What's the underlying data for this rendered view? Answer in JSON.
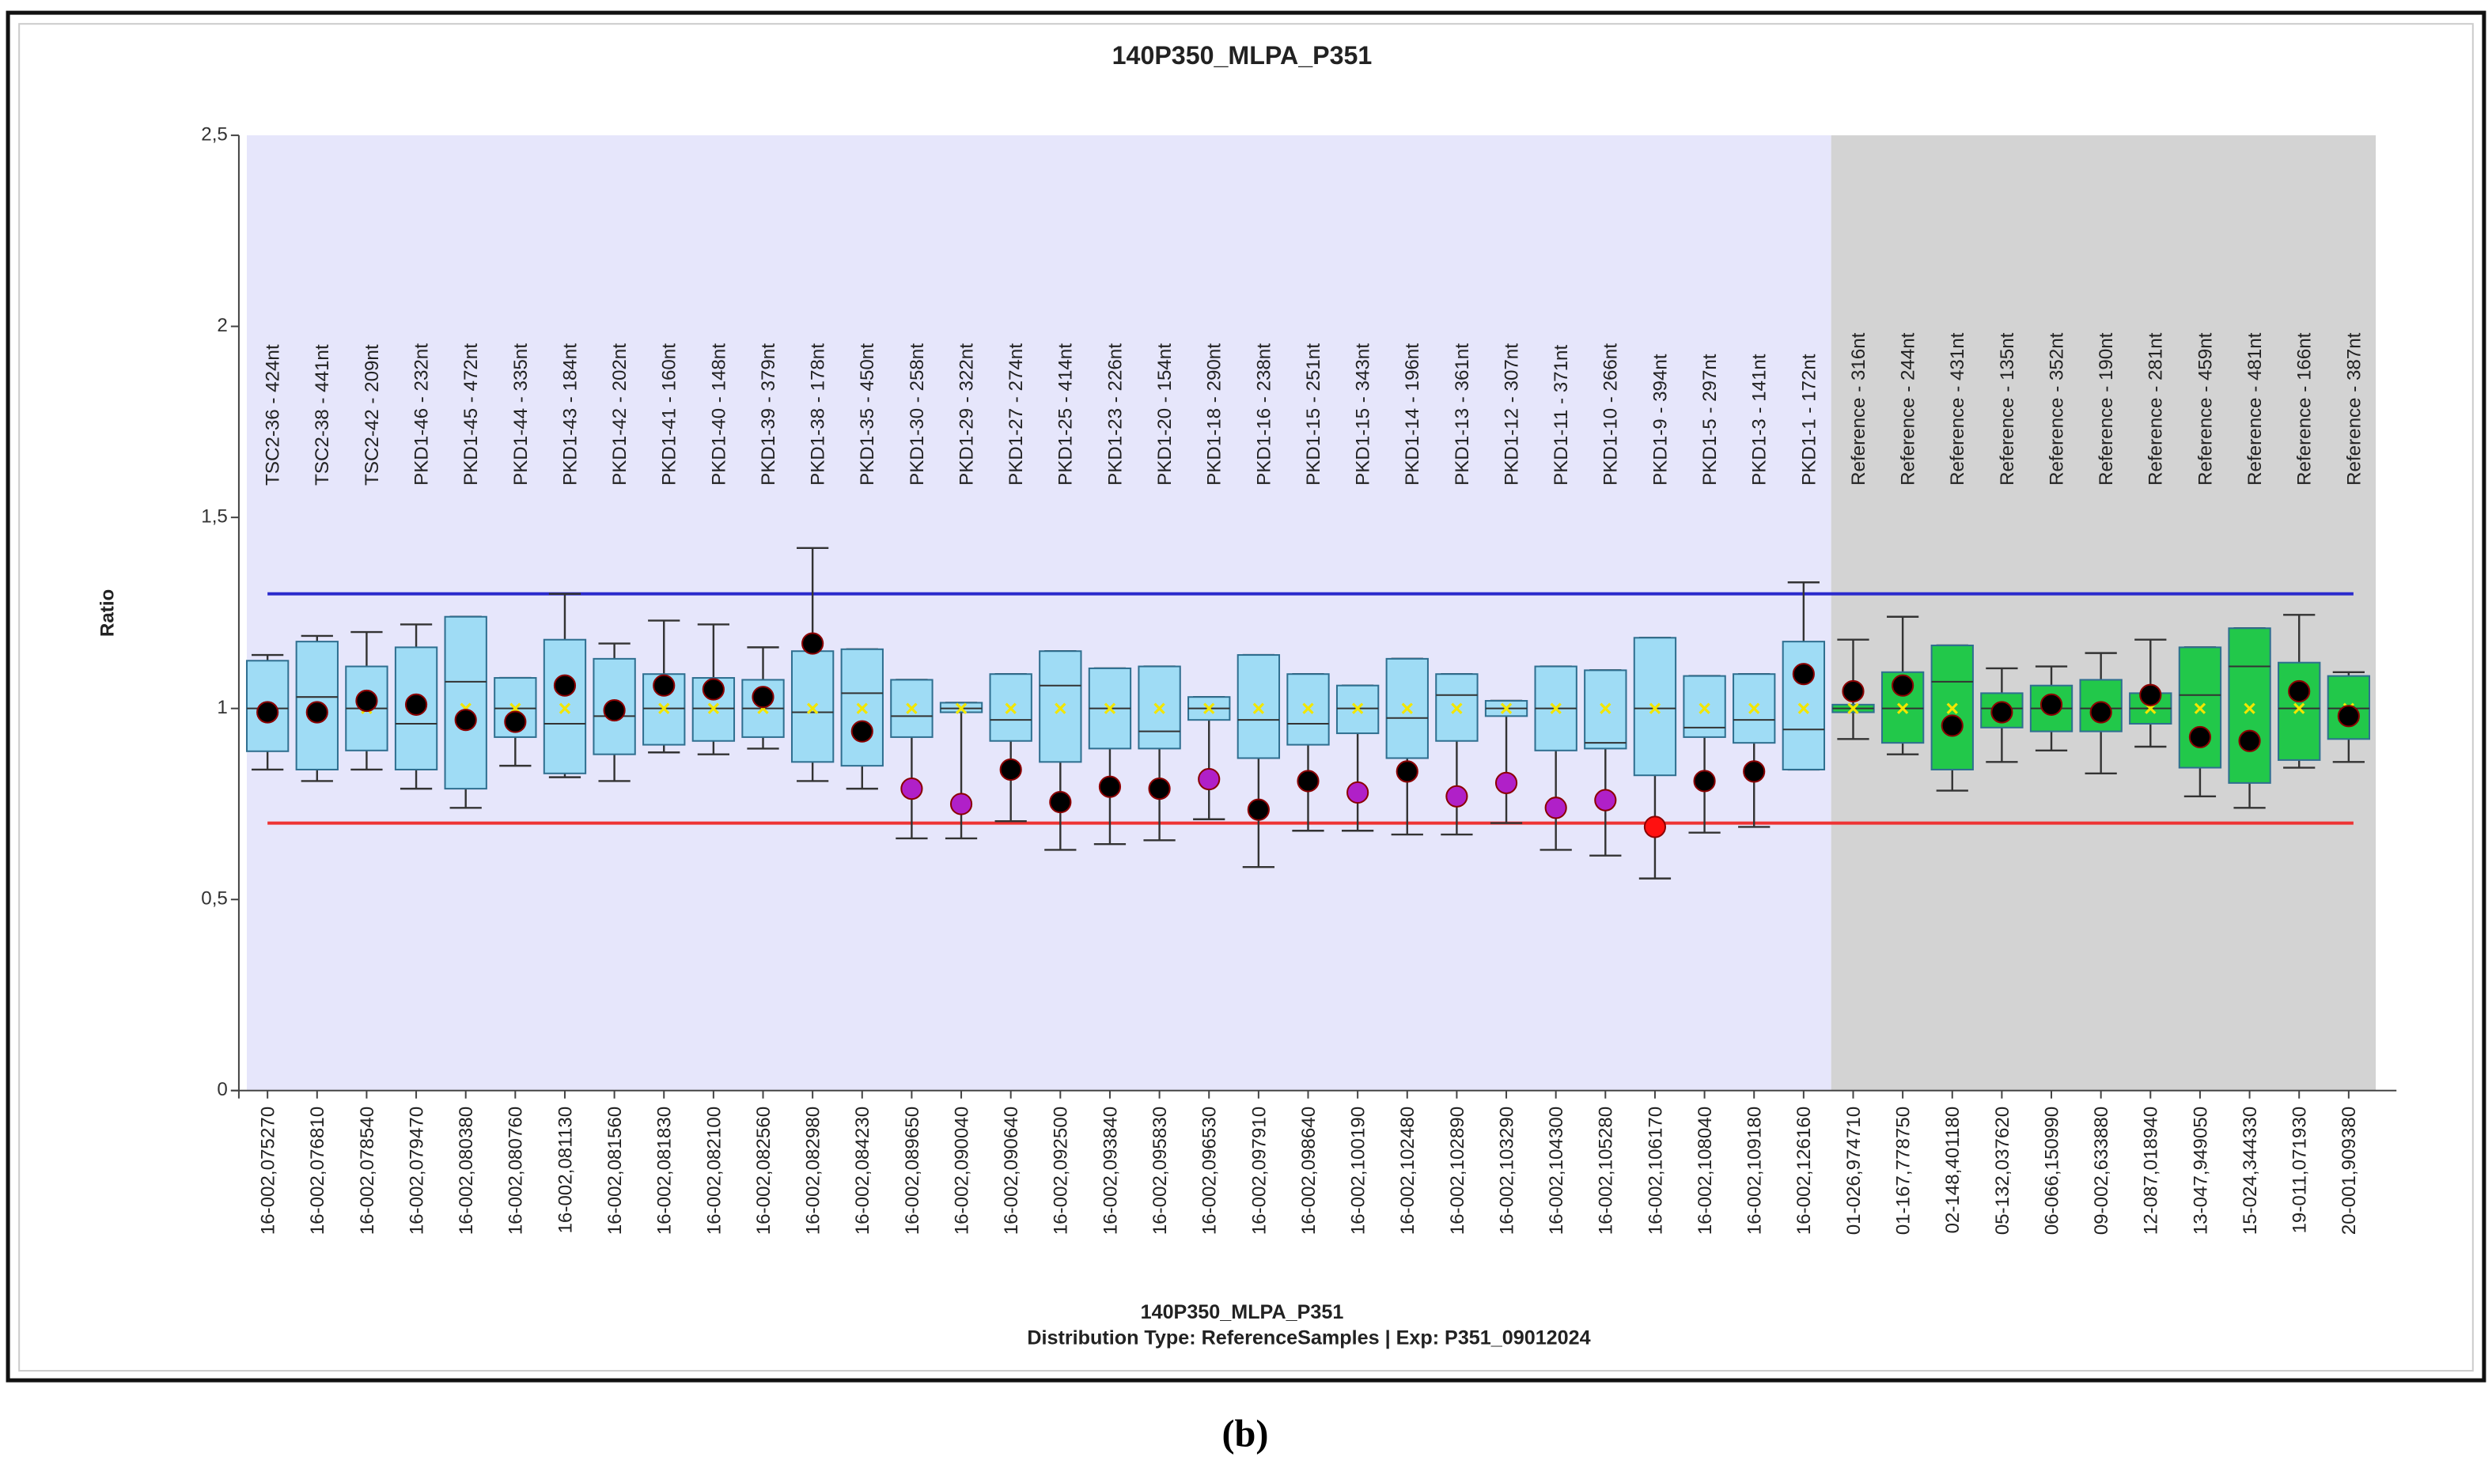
{
  "chart_data": {
    "type": "box",
    "title": "140P350_MLPA_P351",
    "y_label": "Ratio",
    "footer": [
      "140P350_MLPA_P351",
      "Distribution Type: ReferenceSamples | Exp: P351_09012024"
    ],
    "caption": "(b)",
    "ylim": [
      0,
      2.5
    ],
    "yticks": [
      0,
      {
        "value": 0.5,
        "label": "0,5"
      },
      1,
      {
        "value": 1.5,
        "label": "1,5"
      },
      2,
      {
        "value": 2.5,
        "label": "2,5"
      }
    ],
    "upper_limit": {
      "value": 1.3,
      "color": "#2b2bcc"
    },
    "lower_limit": {
      "value": 0.7,
      "color": "#ee3333"
    },
    "mean_color": "#f2e600",
    "boxes": [
      {
        "probe": "TSC2-36 - 424nt",
        "sample": "16-002,075270",
        "whisker_low": 0.84,
        "q1": 0.888,
        "median": 1.0,
        "q3": 1.125,
        "whisker_high": 1.14,
        "mean": 1,
        "value": 0.99,
        "color": "#000000",
        "fill": "#9fdcf5"
      },
      {
        "probe": "TSC2-38 - 441nt",
        "sample": "16-002,076810",
        "whisker_low": 0.81,
        "q1": 0.84,
        "median": 1.03,
        "q3": 1.175,
        "whisker_high": 1.19,
        "mean": 1,
        "value": 0.99,
        "color": "#000000",
        "fill": "#9fdcf5"
      },
      {
        "probe": "TSC2-42 - 209nt",
        "sample": "16-002,078540",
        "whisker_low": 0.84,
        "q1": 0.89,
        "median": 1.0,
        "q3": 1.11,
        "whisker_high": 1.2,
        "mean": 1,
        "value": 1.02,
        "color": "#000000",
        "fill": "#9fdcf5"
      },
      {
        "probe": "PKD1-46 - 232nt",
        "sample": "16-002,079470",
        "whisker_low": 0.79,
        "q1": 0.84,
        "median": 0.96,
        "q3": 1.16,
        "whisker_high": 1.22,
        "mean": 1,
        "value": 1.01,
        "color": "#000000",
        "fill": "#9fdcf5"
      },
      {
        "probe": "PKD1-45 - 472nt",
        "sample": "16-002,080380",
        "whisker_low": 0.74,
        "q1": 0.79,
        "median": 1.07,
        "q3": 1.24,
        "whisker_high": 1.24,
        "mean": 1,
        "value": 0.97,
        "color": "#000000",
        "fill": "#9fdcf5"
      },
      {
        "probe": "PKD1-44 - 335nt",
        "sample": "16-002,080760",
        "whisker_low": 0.85,
        "q1": 0.925,
        "median": 1.0,
        "q3": 1.08,
        "whisker_high": 1.08,
        "mean": 1,
        "value": 0.965,
        "color": "#000000",
        "fill": "#9fdcf5"
      },
      {
        "probe": "PKD1-43 - 184nt",
        "sample": "16-002,081130",
        "whisker_low": 0.82,
        "q1": 0.83,
        "median": 0.96,
        "q3": 1.18,
        "whisker_high": 1.3,
        "mean": 1,
        "value": 1.06,
        "color": "#000000",
        "fill": "#9fdcf5"
      },
      {
        "probe": "PKD1-42 - 202nt",
        "sample": "16-002,081560",
        "whisker_low": 0.81,
        "q1": 0.88,
        "median": 0.98,
        "q3": 1.13,
        "whisker_high": 1.17,
        "mean": 1,
        "value": 0.995,
        "color": "#000000",
        "fill": "#9fdcf5"
      },
      {
        "probe": "PKD1-41 - 160nt",
        "sample": "16-002,081830",
        "whisker_low": 0.885,
        "q1": 0.905,
        "median": 1.0,
        "q3": 1.09,
        "whisker_high": 1.23,
        "mean": 1,
        "value": 1.06,
        "color": "#000000",
        "fill": "#9fdcf5"
      },
      {
        "probe": "PKD1-40 - 148nt",
        "sample": "16-002,082100",
        "whisker_low": 0.88,
        "q1": 0.915,
        "median": 1.0,
        "q3": 1.08,
        "whisker_high": 1.22,
        "mean": 1,
        "value": 1.05,
        "color": "#000000",
        "fill": "#9fdcf5"
      },
      {
        "probe": "PKD1-39 - 379nt",
        "sample": "16-002,082560",
        "whisker_low": 0.895,
        "q1": 0.925,
        "median": 1.0,
        "q3": 1.075,
        "whisker_high": 1.16,
        "mean": 1,
        "value": 1.03,
        "color": "#000000",
        "fill": "#9fdcf5"
      },
      {
        "probe": "PKD1-38 - 178nt",
        "sample": "16-002,082980",
        "whisker_low": 0.81,
        "q1": 0.86,
        "median": 0.99,
        "q3": 1.15,
        "whisker_high": 1.42,
        "mean": 1,
        "value": 1.17,
        "color": "#000000",
        "fill": "#9fdcf5"
      },
      {
        "probe": "PKD1-35 - 450nt",
        "sample": "16-002,084230",
        "whisker_low": 0.79,
        "q1": 0.85,
        "median": 1.04,
        "q3": 1.155,
        "whisker_high": 1.155,
        "mean": 1,
        "value": 0.94,
        "color": "#000000",
        "fill": "#9fdcf5"
      },
      {
        "probe": "PKD1-30 - 258nt",
        "sample": "16-002,089650",
        "whisker_low": 0.66,
        "q1": 0.925,
        "median": 0.98,
        "q3": 1.075,
        "whisker_high": 1.075,
        "mean": 1,
        "value": 0.79,
        "color": "#b020c8",
        "fill": "#9fdcf5"
      },
      {
        "probe": "PKD1-29 - 322nt",
        "sample": "16-002,090040",
        "whisker_low": 0.66,
        "q1": 0.99,
        "median": 1.0,
        "q3": 1.015,
        "whisker_high": 1.015,
        "mean": 1,
        "value": 0.75,
        "color": "#b020c8",
        "fill": "#9fdcf5"
      },
      {
        "probe": "PKD1-27 - 274nt",
        "sample": "16-002,090640",
        "whisker_low": 0.705,
        "q1": 0.915,
        "median": 0.97,
        "q3": 1.09,
        "whisker_high": 1.09,
        "mean": 1,
        "value": 0.84,
        "color": "#000000",
        "fill": "#9fdcf5"
      },
      {
        "probe": "PKD1-25 - 414nt",
        "sample": "16-002,092500",
        "whisker_low": 0.63,
        "q1": 0.86,
        "median": 1.06,
        "q3": 1.15,
        "whisker_high": 1.15,
        "mean": 1,
        "value": 0.755,
        "color": "#000000",
        "fill": "#9fdcf5"
      },
      {
        "probe": "PKD1-23 - 226nt",
        "sample": "16-002,093840",
        "whisker_low": 0.645,
        "q1": 0.895,
        "median": 1.0,
        "q3": 1.105,
        "whisker_high": 1.105,
        "mean": 1,
        "value": 0.795,
        "color": "#000000",
        "fill": "#9fdcf5"
      },
      {
        "probe": "PKD1-20 - 154nt",
        "sample": "16-002,095830",
        "whisker_low": 0.655,
        "q1": 0.895,
        "median": 0.94,
        "q3": 1.11,
        "whisker_high": 1.11,
        "mean": 1,
        "value": 0.79,
        "color": "#000000",
        "fill": "#9fdcf5"
      },
      {
        "probe": "PKD1-18 - 290nt",
        "sample": "16-002,096530",
        "whisker_low": 0.71,
        "q1": 0.97,
        "median": 1.0,
        "q3": 1.03,
        "whisker_high": 1.03,
        "mean": 1,
        "value": 0.815,
        "color": "#b020c8",
        "fill": "#9fdcf5"
      },
      {
        "probe": "PKD1-16 - 238nt",
        "sample": "16-002,097910",
        "whisker_low": 0.585,
        "q1": 0.87,
        "median": 0.97,
        "q3": 1.14,
        "whisker_high": 1.14,
        "mean": 1,
        "value": 0.735,
        "color": "#000000",
        "fill": "#9fdcf5"
      },
      {
        "probe": "PKD1-15 - 251nt",
        "sample": "16-002,098640",
        "whisker_low": 0.68,
        "q1": 0.905,
        "median": 0.96,
        "q3": 1.09,
        "whisker_high": 1.09,
        "mean": 1,
        "value": 0.81,
        "color": "#000000",
        "fill": "#9fdcf5"
      },
      {
        "probe": "PKD1-15 - 343nt",
        "sample": "16-002,100190",
        "whisker_low": 0.68,
        "q1": 0.935,
        "median": 1.0,
        "q3": 1.06,
        "whisker_high": 1.06,
        "mean": 1,
        "value": 0.78,
        "color": "#b020c8",
        "fill": "#9fdcf5"
      },
      {
        "probe": "PKD1-14 - 196nt",
        "sample": "16-002,102480",
        "whisker_low": 0.67,
        "q1": 0.87,
        "median": 0.975,
        "q3": 1.13,
        "whisker_high": 1.13,
        "mean": 1,
        "value": 0.835,
        "color": "#000000",
        "fill": "#9fdcf5"
      },
      {
        "probe": "PKD1-13 - 361nt",
        "sample": "16-002,102890",
        "whisker_low": 0.67,
        "q1": 0.915,
        "median": 1.035,
        "q3": 1.09,
        "whisker_high": 1.09,
        "mean": 1,
        "value": 0.77,
        "color": "#b020c8",
        "fill": "#9fdcf5"
      },
      {
        "probe": "PKD1-12 - 307nt",
        "sample": "16-002,103290",
        "whisker_low": 0.7,
        "q1": 0.98,
        "median": 1.0,
        "q3": 1.02,
        "whisker_high": 1.02,
        "mean": 1,
        "value": 0.805,
        "color": "#b020c8",
        "fill": "#9fdcf5"
      },
      {
        "probe": "PKD1-11 - 371nt",
        "sample": "16-002,104300",
        "whisker_low": 0.63,
        "q1": 0.89,
        "median": 1.0,
        "q3": 1.11,
        "whisker_high": 1.11,
        "mean": 1,
        "value": 0.74,
        "color": "#b020c8",
        "fill": "#9fdcf5"
      },
      {
        "probe": "PKD1-10 - 266nt",
        "sample": "16-002,105280",
        "whisker_low": 0.615,
        "q1": 0.895,
        "median": 0.91,
        "q3": 1.1,
        "whisker_high": 1.1,
        "mean": 1,
        "value": 0.76,
        "color": "#b020c8",
        "fill": "#9fdcf5"
      },
      {
        "probe": "PKD1-9 - 394nt",
        "sample": "16-002,106170",
        "whisker_low": 0.555,
        "q1": 0.825,
        "median": 1.0,
        "q3": 1.185,
        "whisker_high": 1.185,
        "mean": 1,
        "value": 0.69,
        "color": "#ff1010",
        "fill": "#9fdcf5"
      },
      {
        "probe": "PKD1-5 - 297nt",
        "sample": "16-002,108040",
        "whisker_low": 0.675,
        "q1": 0.925,
        "median": 0.95,
        "q3": 1.085,
        "whisker_high": 1.085,
        "mean": 1,
        "value": 0.81,
        "color": "#000000",
        "fill": "#9fdcf5"
      },
      {
        "probe": "PKD1-3 - 141nt",
        "sample": "16-002,109180",
        "whisker_low": 0.69,
        "q1": 0.91,
        "median": 0.97,
        "q3": 1.09,
        "whisker_high": 1.09,
        "mean": 1,
        "value": 0.835,
        "color": "#000000",
        "fill": "#9fdcf5"
      },
      {
        "probe": "PKD1-1 - 172nt",
        "sample": "16-002,126160",
        "whisker_low": 0.84,
        "q1": 0.84,
        "median": 0.945,
        "q3": 1.175,
        "whisker_high": 1.33,
        "mean": 1,
        "value": 1.09,
        "color": "#000000",
        "fill": "#9fdcf5"
      },
      {
        "probe": "Reference - 316nt",
        "sample": "01-026,974710",
        "whisker_low": 0.92,
        "q1": 0.99,
        "median": 1.0,
        "q3": 1.01,
        "whisker_high": 1.18,
        "mean": 1,
        "value": 1.045,
        "color": "#000000",
        "fill": "#22c84a"
      },
      {
        "probe": "Reference - 244nt",
        "sample": "01-167,778750",
        "whisker_low": 0.88,
        "q1": 0.91,
        "median": 1.0,
        "q3": 1.095,
        "whisker_high": 1.24,
        "mean": 1,
        "value": 1.06,
        "color": "#000000",
        "fill": "#22c84a"
      },
      {
        "probe": "Reference - 431nt",
        "sample": "02-148,401180",
        "whisker_low": 0.785,
        "q1": 0.84,
        "median": 1.07,
        "q3": 1.165,
        "whisker_high": 1.165,
        "mean": 1,
        "value": 0.955,
        "color": "#000000",
        "fill": "#22c84a"
      },
      {
        "probe": "Reference - 135nt",
        "sample": "05-132,037620",
        "whisker_low": 0.86,
        "q1": 0.95,
        "median": 1.0,
        "q3": 1.04,
        "whisker_high": 1.105,
        "mean": 1,
        "value": 0.99,
        "color": "#000000",
        "fill": "#22c84a"
      },
      {
        "probe": "Reference - 352nt",
        "sample": "06-066,150990",
        "whisker_low": 0.89,
        "q1": 0.94,
        "median": 1.0,
        "q3": 1.06,
        "whisker_high": 1.11,
        "mean": 1,
        "value": 1.01,
        "color": "#000000",
        "fill": "#22c84a"
      },
      {
        "probe": "Reference - 190nt",
        "sample": "09-002,633880",
        "whisker_low": 0.83,
        "q1": 0.94,
        "median": 1.0,
        "q3": 1.075,
        "whisker_high": 1.145,
        "mean": 1,
        "value": 0.99,
        "color": "#000000",
        "fill": "#22c84a"
      },
      {
        "probe": "Reference - 281nt",
        "sample": "12-087,018940",
        "whisker_low": 0.9,
        "q1": 0.96,
        "median": 1.0,
        "q3": 1.04,
        "whisker_high": 1.18,
        "mean": 1,
        "value": 1.035,
        "color": "#000000",
        "fill": "#22c84a"
      },
      {
        "probe": "Reference - 459nt",
        "sample": "13-047,949050",
        "whisker_low": 0.77,
        "q1": 0.845,
        "median": 1.035,
        "q3": 1.16,
        "whisker_high": 1.16,
        "mean": 1,
        "value": 0.925,
        "color": "#000000",
        "fill": "#22c84a"
      },
      {
        "probe": "Reference - 481nt",
        "sample": "15-024,344330",
        "whisker_low": 0.74,
        "q1": 0.805,
        "median": 1.11,
        "q3": 1.21,
        "whisker_high": 1.21,
        "mean": 1,
        "value": 0.915,
        "color": "#000000",
        "fill": "#22c84a"
      },
      {
        "probe": "Reference - 166nt",
        "sample": "19-011,071930",
        "whisker_low": 0.845,
        "q1": 0.865,
        "median": 1.0,
        "q3": 1.12,
        "whisker_high": 1.245,
        "mean": 1,
        "value": 1.045,
        "color": "#000000",
        "fill": "#22c84a"
      },
      {
        "probe": "Reference - 387nt",
        "sample": "20-001,909380",
        "whisker_low": 0.86,
        "q1": 0.92,
        "median": 1.0,
        "q3": 1.085,
        "whisker_high": 1.095,
        "mean": 1,
        "value": 0.98,
        "color": "#000000",
        "fill": "#22c84a"
      }
    ]
  }
}
